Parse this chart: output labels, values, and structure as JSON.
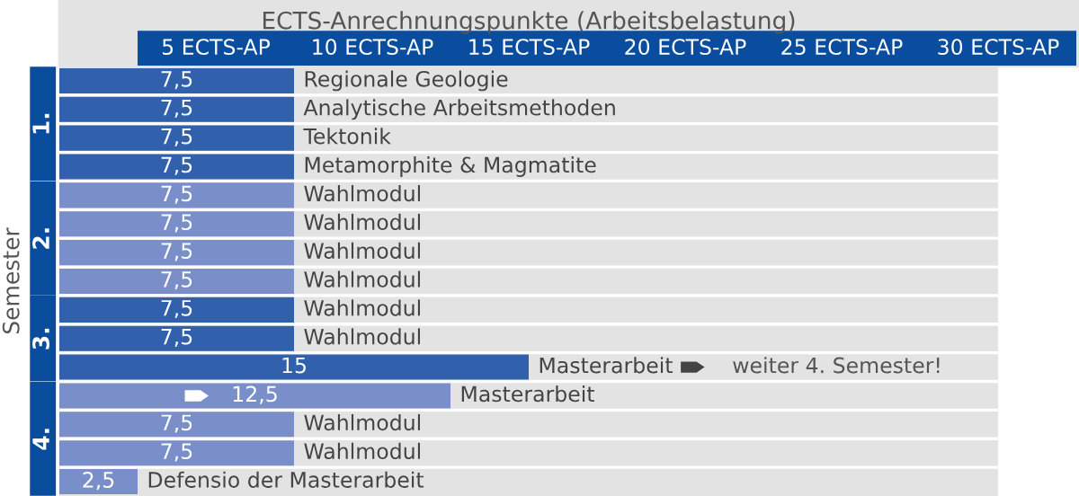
{
  "chart_data": {
    "type": "bar",
    "orientation": "horizontal",
    "title": "ECTS-Anrechnungspunkte (Arbeitsbelastung)",
    "ylabel": "Semester",
    "categories": [
      "Regionale Geologie",
      "Analytische Arbeitsmethoden",
      "Tektonik",
      "Metamorphite & Magmatite",
      "Wahlmodul",
      "Wahlmodul",
      "Wahlmodul",
      "Wahlmodul",
      "Wahlmodul",
      "Wahlmodul",
      "Masterarbeit",
      "Masterarbeit",
      "Wahlmodul",
      "Wahlmodul",
      "Defensio der Masterarbeit"
    ],
    "values": [
      7.5,
      7.5,
      7.5,
      7.5,
      7.5,
      7.5,
      7.5,
      7.5,
      7.5,
      7.5,
      15,
      12.5,
      7.5,
      7.5,
      2.5
    ],
    "value_labels": [
      "7,5",
      "7,5",
      "7,5",
      "7,5",
      "7,5",
      "7,5",
      "7,5",
      "7,5",
      "7,5",
      "7,5",
      "15",
      "12,5",
      "7,5",
      "7,5",
      "2,5"
    ],
    "colors": [
      "#3161ad",
      "#3161ad",
      "#3161ad",
      "#3161ad",
      "#7a8fc9",
      "#7a8fc9",
      "#7a8fc9",
      "#7a8fc9",
      "#3161ad",
      "#3161ad",
      "#3161ad",
      "#7a8fc9",
      "#7a8fc9",
      "#7a8fc9",
      "#7a8fc9"
    ],
    "xlim": [
      0,
      30
    ],
    "xticks": [
      {
        "value": 5,
        "label": "5 ECTS-AP"
      },
      {
        "value": 10,
        "label": "10 ECTS-AP"
      },
      {
        "value": 15,
        "label": "15 ECTS-AP"
      },
      {
        "value": 20,
        "label": "20 ECTS-AP"
      },
      {
        "value": 25,
        "label": "25 ECTS-AP"
      },
      {
        "value": 30,
        "label": "30 ECTS-AP"
      }
    ],
    "annotations": [
      "1.",
      "2.",
      "3.",
      "4.",
      "weiter 4. Semester!"
    ],
    "tick_labels": "x"
  }
}
